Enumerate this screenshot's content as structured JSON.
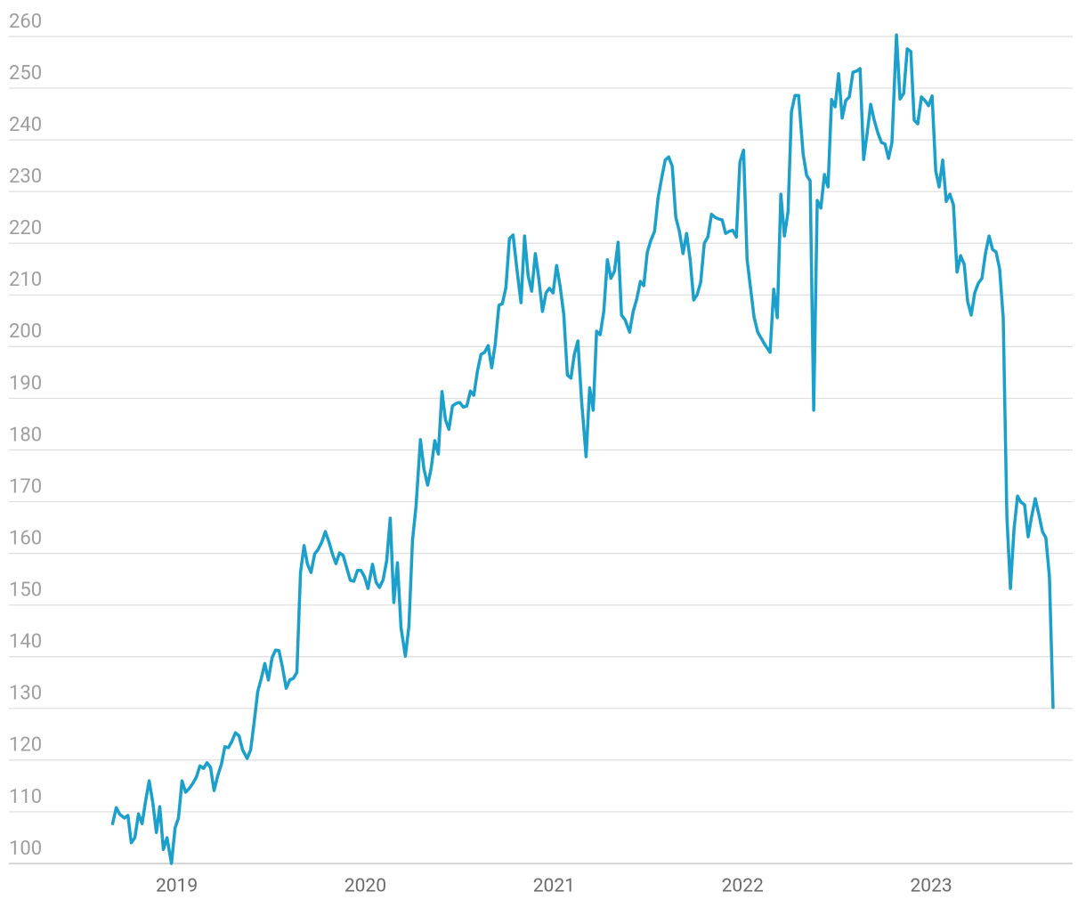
{
  "chart_data": {
    "type": "line",
    "color": "#1b9fcb",
    "grid": true,
    "xlim": [
      2018.11,
      2023.75
    ],
    "xticks": [
      2019,
      2020,
      2021,
      2022,
      2023
    ],
    "ylim": [
      100,
      260
    ],
    "yticks": [
      100,
      110,
      120,
      130,
      140,
      150,
      160,
      170,
      180,
      190,
      200,
      210,
      220,
      230,
      240,
      250,
      260
    ],
    "x": [
      2018.66,
      2018.679,
      2018.698,
      2018.722,
      2018.741,
      2018.759,
      2018.778,
      2018.797,
      2018.816,
      2018.835,
      2018.854,
      2018.873,
      2018.892,
      2018.91,
      2018.929,
      2018.948,
      2018.972,
      2018.991,
      2019.009,
      2019.028,
      2019.047,
      2019.066,
      2019.085,
      2019.104,
      2019.123,
      2019.142,
      2019.16,
      2019.179,
      2019.198,
      2019.217,
      2019.236,
      2019.255,
      2019.274,
      2019.292,
      2019.311,
      2019.33,
      2019.349,
      2019.373,
      2019.392,
      2019.41,
      2019.429,
      2019.448,
      2019.467,
      2019.486,
      2019.505,
      2019.524,
      2019.542,
      2019.561,
      2019.58,
      2019.599,
      2019.618,
      2019.637,
      2019.656,
      2019.675,
      2019.693,
      2019.712,
      2019.731,
      2019.75,
      2019.769,
      2019.788,
      2019.807,
      2019.825,
      2019.844,
      2019.863,
      2019.882,
      2019.901,
      2019.92,
      2019.939,
      2019.958,
      2019.976,
      2019.995,
      2020.014,
      2020.038,
      2020.057,
      2020.075,
      2020.094,
      2020.113,
      2020.132,
      2020.151,
      2020.17,
      2020.189,
      2020.212,
      2020.231,
      2020.25,
      2020.269,
      2020.292,
      2020.311,
      2020.33,
      2020.349,
      2020.368,
      2020.387,
      2020.406,
      2020.425,
      2020.443,
      2020.462,
      2020.481,
      2020.5,
      2020.519,
      2020.538,
      2020.557,
      2020.575,
      2020.594,
      2020.613,
      2020.632,
      2020.651,
      2020.67,
      2020.689,
      2020.708,
      2020.726,
      2020.745,
      2020.764,
      2020.783,
      2020.802,
      2020.825,
      2020.844,
      2020.863,
      2020.882,
      2020.901,
      2020.92,
      2020.939,
      2020.958,
      2020.976,
      2020.995,
      2021.014,
      2021.033,
      2021.052,
      2021.071,
      2021.09,
      2021.108,
      2021.127,
      2021.146,
      2021.17,
      2021.189,
      2021.208,
      2021.226,
      2021.245,
      2021.264,
      2021.283,
      2021.302,
      2021.321,
      2021.34,
      2021.358,
      2021.377,
      2021.401,
      2021.42,
      2021.439,
      2021.458,
      2021.476,
      2021.495,
      2021.514,
      2021.533,
      2021.552,
      2021.571,
      2021.59,
      2021.608,
      2021.627,
      2021.646,
      2021.665,
      2021.684,
      2021.703,
      2021.722,
      2021.741,
      2021.759,
      2021.778,
      2021.797,
      2021.816,
      2021.835,
      2021.854,
      2021.873,
      2021.892,
      2021.91,
      2021.929,
      2021.948,
      2021.967,
      2021.986,
      2022.005,
      2022.024,
      2022.042,
      2022.061,
      2022.08,
      2022.099,
      2022.118,
      2022.146,
      2022.165,
      2022.184,
      2022.203,
      2022.222,
      2022.241,
      2022.259,
      2022.278,
      2022.297,
      2022.321,
      2022.34,
      2022.358,
      2022.377,
      2022.396,
      2022.415,
      2022.434,
      2022.453,
      2022.472,
      2022.491,
      2022.509,
      2022.528,
      2022.547,
      2022.566,
      2022.585,
      2022.604,
      2022.623,
      2022.642,
      2022.66,
      2022.679,
      2022.698,
      2022.717,
      2022.736,
      2022.755,
      2022.774,
      2022.792,
      2022.816,
      2022.835,
      2022.854,
      2022.873,
      2022.892,
      2022.91,
      2022.929,
      2022.948,
      2022.967,
      2022.986,
      2023.005,
      2023.024,
      2023.042,
      2023.061,
      2023.08,
      2023.099,
      2023.118,
      2023.137,
      2023.156,
      2023.175,
      2023.193,
      2023.212,
      2023.231,
      2023.25,
      2023.269,
      2023.288,
      2023.307,
      2023.325,
      2023.344,
      2023.363,
      2023.382,
      2023.401,
      2023.42,
      2023.439,
      2023.458,
      2023.476,
      2023.495,
      2023.514,
      2023.533,
      2023.552,
      2023.571,
      2023.59,
      2023.608,
      2023.627,
      2023.646
    ],
    "values": [
      107.7,
      110.8,
      109.5,
      108.8,
      109.3,
      104.0,
      105.0,
      109.6,
      107.7,
      112.1,
      116.0,
      111.7,
      106.0,
      111.0,
      102.7,
      105.0,
      100.0,
      106.9,
      108.8,
      116.0,
      113.8,
      114.5,
      115.5,
      116.7,
      118.9,
      118.4,
      119.5,
      118.6,
      114.1,
      117.0,
      119.1,
      122.6,
      122.4,
      123.6,
      125.3,
      124.7,
      122.0,
      120.3,
      122.0,
      127.2,
      133.2,
      135.8,
      138.7,
      135.5,
      139.8,
      141.3,
      141.2,
      137.9,
      133.9,
      135.5,
      135.8,
      137.0,
      156.3,
      161.5,
      157.9,
      156.3,
      159.9,
      160.8,
      162.2,
      164.2,
      162.2,
      159.9,
      158.0,
      160.1,
      159.6,
      157.2,
      154.8,
      154.6,
      156.7,
      156.7,
      155.5,
      153.2,
      157.9,
      154.4,
      153.4,
      154.9,
      158.6,
      166.8,
      150.5,
      158.2,
      145.6,
      140.1,
      146.0,
      162.5,
      169.2,
      182.0,
      176.3,
      173.2,
      176.5,
      181.8,
      179.2,
      191.3,
      185.8,
      184.0,
      188.5,
      189.0,
      189.2,
      188.3,
      188.5,
      191.4,
      190.6,
      195.2,
      198.5,
      198.9,
      200.2,
      195.9,
      200.6,
      208.0,
      208.3,
      211.4,
      220.9,
      221.6,
      215.4,
      208.5,
      221.4,
      213.7,
      210.7,
      218.0,
      213.0,
      206.8,
      210.4,
      211.3,
      210.4,
      215.7,
      211.6,
      206.3,
      194.5,
      193.9,
      198.5,
      201.1,
      189.6,
      178.7,
      192.0,
      187.7,
      203.0,
      202.3,
      206.8,
      216.8,
      213.2,
      214.6,
      220.2,
      206.1,
      205.2,
      202.8,
      206.8,
      209.2,
      212.6,
      211.8,
      218.3,
      220.6,
      222.3,
      228.8,
      232.6,
      236.1,
      236.7,
      234.9,
      225.0,
      222.3,
      218.0,
      221.9,
      216.8,
      209.0,
      210.0,
      212.5,
      220.0,
      221.2,
      225.6,
      225.0,
      224.7,
      224.5,
      221.9,
      222.3,
      222.5,
      221.2,
      235.7,
      238.0,
      216.8,
      211.4,
      205.7,
      202.8,
      201.6,
      200.4,
      198.9,
      211.1,
      205.6,
      229.5,
      221.4,
      226.1,
      245.5,
      248.6,
      248.6,
      237.3,
      233.1,
      232.1,
      187.7,
      228.3,
      226.8,
      233.3,
      230.9,
      247.8,
      246.4,
      252.8,
      244.2,
      247.6,
      248.3,
      253.1,
      253.3,
      253.8,
      236.2,
      241.2,
      246.9,
      243.8,
      241.4,
      239.5,
      239.2,
      236.4,
      239.5,
      260.3,
      247.9,
      249.0,
      257.6,
      257.1,
      243.8,
      243.1,
      248.3,
      247.6,
      246.6,
      248.5,
      234.0,
      230.9,
      236.1,
      228.1,
      229.5,
      227.4,
      214.4,
      217.6,
      215.9,
      208.8,
      206.1,
      210.4,
      212.3,
      213.2,
      218.1,
      221.4,
      218.8,
      218.3,
      215.0,
      205.6,
      167.2,
      153.2,
      164.6,
      171.1,
      169.9,
      169.4,
      163.2,
      167.2,
      170.6,
      167.5,
      164.2,
      163.0,
      155.5,
      130.2
    ]
  }
}
